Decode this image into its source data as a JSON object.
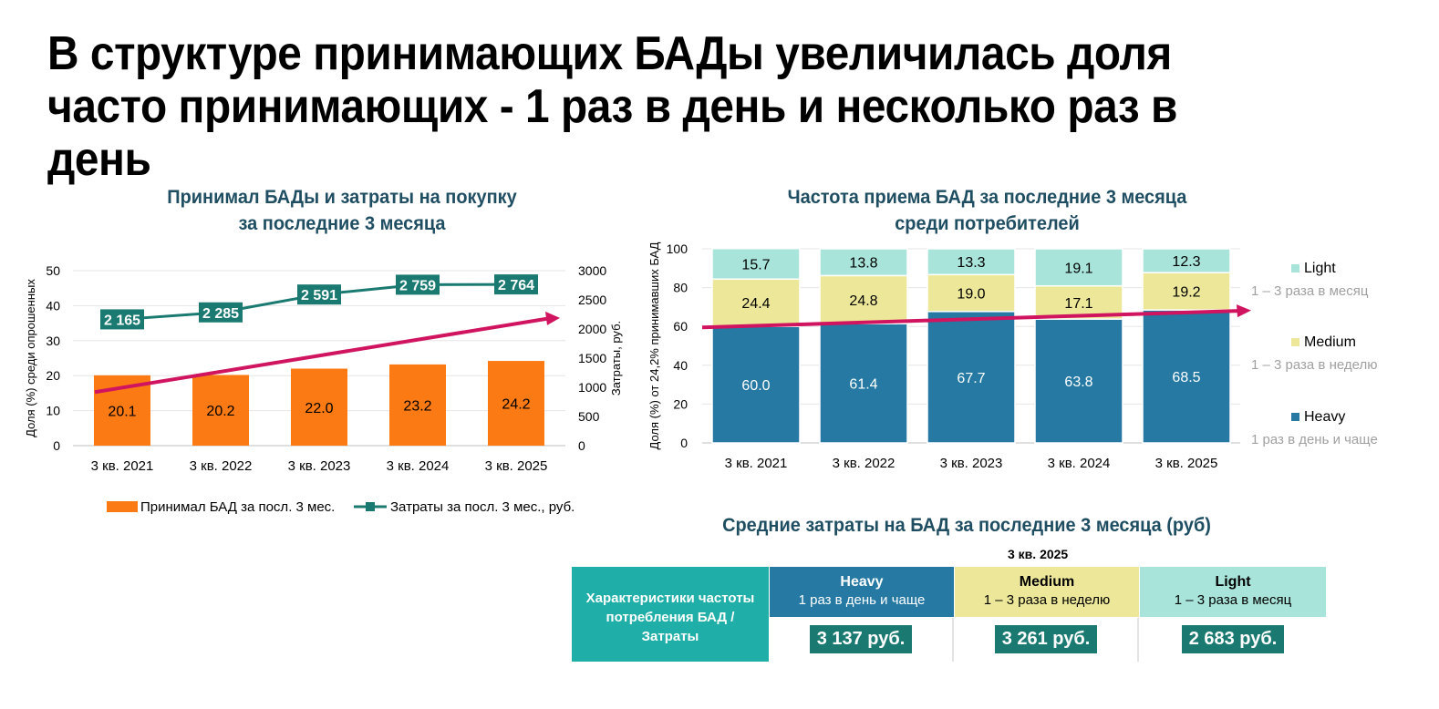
{
  "title": "В структуре принимающих БАДы увеличилась доля часто принимающих - 1 раз в день и несколько раз в день",
  "colors": {
    "bar_orange": "#fb7a14",
    "line_teal": "#1a7a72",
    "trend_pink": "#d0145f",
    "heavy": "#2579a3",
    "medium": "#ede899",
    "light": "#a8e4da",
    "table_teal": "#20afa8",
    "title_dark": "#1f4e63"
  },
  "chart_data": [
    {
      "type": "bar",
      "title_line1": "Принимал БАДы и затраты на покупку",
      "title_line2": "за последние 3 месяца",
      "categories": [
        "3 кв. 2021",
        "3 кв. 2022",
        "3 кв. 2023",
        "3 кв. 2024",
        "3 кв. 2025"
      ],
      "series": [
        {
          "name": "Принимал БАД за посл. 3 мес.",
          "type": "bar",
          "values": [
            20.1,
            20.2,
            22.0,
            23.2,
            24.2
          ],
          "labels": [
            "20.1",
            "20.2",
            "22.0",
            "23.2",
            "24.2"
          ]
        },
        {
          "name": "Затраты за посл. 3 мес., руб.",
          "type": "line",
          "axis": "right",
          "values": [
            2165,
            2285,
            2591,
            2759,
            2764
          ],
          "labels": [
            "2 165",
            "2 285",
            "2 591",
            "2 759",
            "2 764"
          ]
        }
      ],
      "ylabel": "Доля (%) среди опрошенных",
      "y2label": "Затраты, руб.",
      "ylim": [
        0,
        50
      ],
      "y2lim": [
        0,
        3000
      ],
      "yticks": [
        "0",
        "10",
        "20",
        "30",
        "40",
        "50"
      ],
      "y2ticks": [
        "0",
        "500",
        "1000",
        "1500",
        "2000",
        "2500",
        "3000"
      ],
      "trend": {
        "from": 15.3,
        "to": 36.5,
        "axis": "left"
      }
    },
    {
      "type": "bar",
      "stacked": true,
      "title_line1": "Частота приема БАД за последние 3 месяца",
      "title_line2": "среди потребителей",
      "categories": [
        "3 кв. 2021",
        "3 кв. 2022",
        "3 кв. 2023",
        "3 кв. 2024",
        "3 кв. 2025"
      ],
      "series": [
        {
          "name": "Heavy",
          "desc": "1 раз в день и чаще",
          "values": [
            60.0,
            61.4,
            67.7,
            63.8,
            68.5
          ],
          "labels": [
            "60.0",
            "61.4",
            "67.7",
            "63.8",
            "68.5"
          ]
        },
        {
          "name": "Medium",
          "desc": "1 – 3 раза в неделю",
          "values": [
            24.4,
            24.8,
            19.0,
            17.1,
            19.2
          ],
          "labels": [
            "24.4",
            "24.8",
            "19.0",
            "17.1",
            "19.2"
          ]
        },
        {
          "name": "Light",
          "desc": "1 – 3 раза в месяц",
          "values": [
            15.7,
            13.8,
            13.3,
            19.1,
            12.3
          ],
          "labels": [
            "15.7",
            "13.8",
            "13.3",
            "19.1",
            "12.3"
          ]
        }
      ],
      "ylabel": "Доля (%) от 24,2% принимавших БАД",
      "ylim": [
        0,
        100
      ],
      "yticks": [
        "0",
        "20",
        "40",
        "60",
        "80",
        "100"
      ],
      "trend": {
        "from": 59.5,
        "to": 68.0
      }
    }
  ],
  "table": {
    "title": "Средние затраты на БАД за последние 3 месяца (руб)",
    "period": "3 кв. 2025",
    "row_header": "Характеристики частоты потребления БАД / Затраты",
    "columns": [
      {
        "name": "Heavy",
        "desc": "1 раз в день и чаще",
        "value": "3 137 руб."
      },
      {
        "name": "Medium",
        "desc": "1 – 3 раза в неделю",
        "value": "3 261 руб."
      },
      {
        "name": "Light",
        "desc": "1 – 3 раза в месяц",
        "value": "2 683 руб."
      }
    ]
  }
}
